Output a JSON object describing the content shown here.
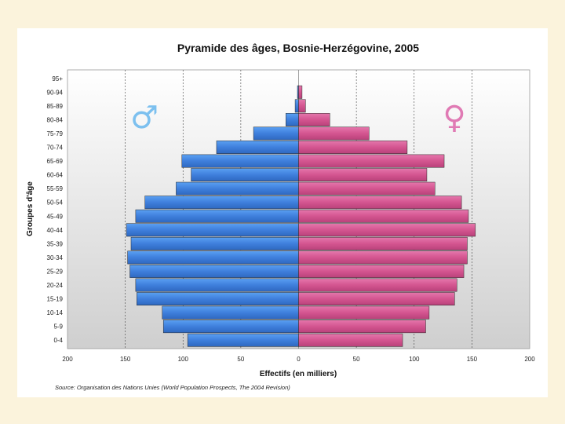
{
  "chart_data": {
    "type": "bar",
    "orientation": "horizontal",
    "layout": "population-pyramid",
    "title": "Pyramide des âges, Bosnie-Herzégovine, 2005",
    "xlabel": "Effectifs (en milliers)",
    "ylabel": "Groupes d'âge",
    "source": "Source: Organisation des Nations Unies (World Population Prospects, The 2004 Revision)",
    "categories": [
      "95+",
      "90-94",
      "85-89",
      "80-84",
      "75-79",
      "70-74",
      "65-69",
      "60-64",
      "55-59",
      "50-54",
      "45-49",
      "40-44",
      "35-39",
      "30-34",
      "25-29",
      "20-24",
      "15-19",
      "10-14",
      "5-9",
      "0-4"
    ],
    "series": [
      {
        "symbol": "♂",
        "color": "#4f8fe6",
        "values": [
          0,
          1,
          3,
          11,
          39,
          71,
          101,
          93,
          106,
          133,
          141,
          149,
          145,
          148,
          146,
          141,
          140,
          118,
          117,
          96
        ]
      },
      {
        "symbol": "♀",
        "color": "#d8609a",
        "values": [
          0,
          3,
          6,
          27,
          61,
          94,
          126,
          111,
          118,
          141,
          147,
          153,
          146,
          146,
          143,
          137,
          135,
          113,
          110,
          90
        ]
      }
    ],
    "xticks": [
      "200",
      "150",
      "100",
      "50",
      "0",
      "50",
      "100",
      "150",
      "200"
    ],
    "xlim": [
      -200,
      200
    ],
    "grid": "vertical dashed at 50, 100, 150 on both sides",
    "symbol_colors": {
      "male": "#7cc0ef",
      "female": "#e07ab4"
    }
  }
}
